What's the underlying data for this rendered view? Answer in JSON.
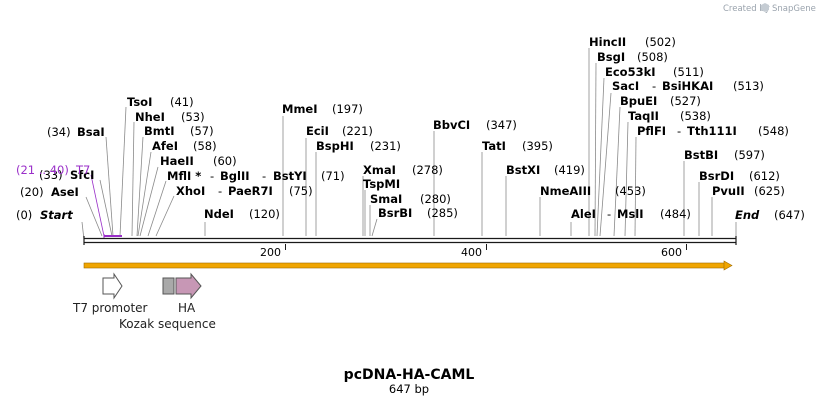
{
  "title": "pcDNA-HA-CAML",
  "length_label": "647 bp",
  "credit": {
    "prefix": "Created by",
    "brand": "SnapGene"
  },
  "axis": {
    "total_bp": 647,
    "ticks": [
      "200",
      "400",
      "600"
    ]
  },
  "primer": {
    "name": "T7",
    "range": "(21 .. 40)"
  },
  "features": [
    {
      "name": "T7 promoter",
      "color": "#ffffff"
    },
    {
      "name": "Kozak sequence",
      "color": "#a9a9a9"
    },
    {
      "name": "HA",
      "color": "#c797b5"
    }
  ],
  "enzymes": [
    {
      "pos": "(0)",
      "name": "Start"
    },
    {
      "pos": "(20)",
      "name": "AseI"
    },
    {
      "pos": "(33)",
      "name": "SfcI"
    },
    {
      "pos": "(34)",
      "name": "BsaI"
    },
    {
      "name": "TsoI",
      "pos": "(41)"
    },
    {
      "name": "NheI",
      "pos": "(53)"
    },
    {
      "name": "BmtI",
      "pos": "(57)"
    },
    {
      "name": "AfeI",
      "pos": "(58)"
    },
    {
      "name": "HaeII",
      "pos": "(60)"
    },
    {
      "name": "MflI *",
      "pos": "(71)",
      "sep": "-",
      "name2": "BglII",
      "sep2": "-",
      "name3": "BstYI"
    },
    {
      "name": "XhoI",
      "pos": "(75)",
      "sep": "-",
      "name2": "PaeR7I"
    },
    {
      "name": "NdeI",
      "pos": "(120)"
    },
    {
      "name": "MmeI",
      "pos": "(197)"
    },
    {
      "name": "EciI",
      "pos": "(221)"
    },
    {
      "name": "BspHI",
      "pos": "(231)"
    },
    {
      "name": "XmaI",
      "pos": "(278)"
    },
    {
      "name": "TspMI"
    },
    {
      "name": "SmaI",
      "pos": "(280)"
    },
    {
      "name": "BsrBI",
      "pos": "(285)"
    },
    {
      "name": "BbvCI",
      "pos": "(347)"
    },
    {
      "name": "TatI",
      "pos": "(395)"
    },
    {
      "name": "BstXI",
      "pos": "(419)"
    },
    {
      "name": "NmeAIII",
      "pos": "(453)"
    },
    {
      "name": "AleI",
      "sep": "-",
      "name2": "MslI",
      "pos": "(484)"
    },
    {
      "name": "HincII",
      "pos": "(502)"
    },
    {
      "name": "BsgI",
      "pos": "(508)"
    },
    {
      "name": "Eco53kI",
      "pos": "(511)"
    },
    {
      "name": "SacI",
      "sep": "-",
      "name2": "BsiHKAI",
      "pos": "(513)"
    },
    {
      "name": "BpuEI",
      "pos": "(527)"
    },
    {
      "name": "TaqII",
      "pos": "(538)"
    },
    {
      "name": "PflFI",
      "sep": "-",
      "name2": "Tth111I",
      "pos": "(548)"
    },
    {
      "name": "BstBI",
      "pos": "(597)"
    },
    {
      "name": "BsrDI",
      "pos": "(612)"
    },
    {
      "name": "PvuII",
      "pos": "(625)"
    },
    {
      "name": "End",
      "pos": "(647)"
    }
  ],
  "colors": {
    "backbone": "#1a1a1a",
    "orf": "#f0a500",
    "primer": "#9a2fc9",
    "brand": "#9aa3ad"
  }
}
